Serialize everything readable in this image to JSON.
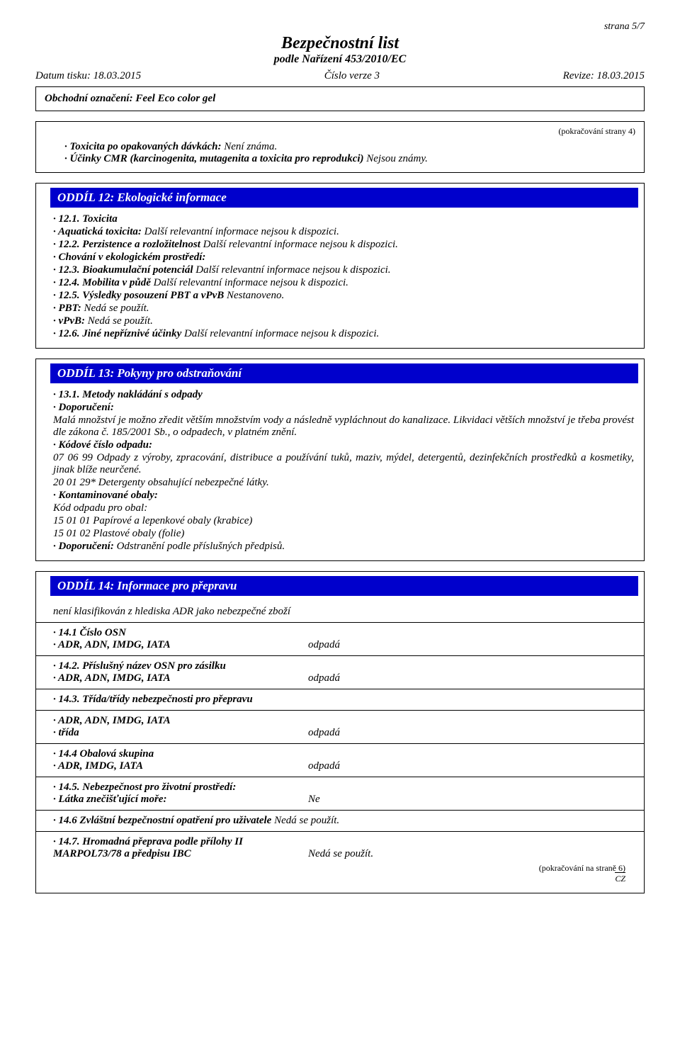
{
  "page": {
    "page_number": "strana 5/7",
    "title": "Bezpečnostní list",
    "subtitle": "podle Nařízení 453/2010/EC",
    "print_date_label": "Datum tisku: 18.03.2015",
    "version_label": "Číslo verze 3",
    "revision_label": "Revize: 18.03.2015",
    "product_label": "Obchodní označení: Feel Eco color gel",
    "cont_from": "(pokračování  strany 4)",
    "cont_next": "(pokračování na straně 6)",
    "cz": "CZ"
  },
  "intro": {
    "l1a": "· Toxicita po opakovaných dávkách:",
    "l1b": " Není známa.",
    "l2a": "· Účinky CMR (karcinogenita, mutagenita a toxicita pro reprodukci)",
    "l2b": " Nejsou známy."
  },
  "s12": {
    "header": "ODDÍL 12: Ekologické informace",
    "l1": "· 12.1. Toxicita",
    "l2a": "· Aquatická toxicita:",
    "l2b": " Další relevantní informace nejsou k dispozici.",
    "l3a": "· 12.2. Perzistence a rozložitelnost",
    "l3b": " Další relevantní informace nejsou k dispozici.",
    "l4": "· Chování v ekologickém prostředí:",
    "l5a": "· 12.3. Bioakumulační potenciál",
    "l5b": " Další relevantní informace nejsou k dispozici.",
    "l6a": "· 12.4. Mobilita v půdě",
    "l6b": " Další relevantní informace nejsou k dispozici.",
    "l7a": "· 12.5. Výsledky posouzení PBT a vPvB",
    "l7b": " Nestanoveno.",
    "l8a": "· PBT:",
    "l8b": " Nedá se použít.",
    "l9a": "· vPvB:",
    "l9b": " Nedá se použít.",
    "l10a": "· 12.6. Jiné nepříznivé účinky",
    "l10b": " Další relevantní informace nejsou k dispozici."
  },
  "s13": {
    "header": "ODDÍL 13: Pokyny pro odstraňování",
    "l1": "· 13.1. Metody nakládání s odpady",
    "l2": "· Doporučení:",
    "p1": "Malá množství je možno zředit větším množstvím vody a následně vypláchnout do kanalizace. Likvidaci větších množství je třeba provést dle zákona č. 185/2001 Sb., o odpadech, v platném znění.",
    "l3": "· Kódové číslo odpadu:",
    "p2": "07 06 99 Odpady z výroby, zpracování, distribuce a používání tuků, maziv, mýdel, detergentů, dezinfekčních prostředků a kosmetiky, jinak blíže neurčené.",
    "p3": "20 01 29* Detergenty obsahující nebezpečné látky.",
    "l4": "· Kontaminované obaly:",
    "p4": "Kód odpadu pro obal:",
    "p5": "15 01 01 Papírové a lepenkové obaly (krabice)",
    "p6": "15 01 02 Plastové obaly (folie)",
    "l5a": "· Doporučení:",
    "l5b": " Odstranění podle příslušných předpisů."
  },
  "s14": {
    "header": "ODDÍL 14: Informace pro přepravu",
    "intro": "není klasifikován z hlediska ADR jako nebezpečné zboží",
    "r1k1": "· 14.1 Číslo OSN",
    "r1k2": "· ADR, ADN, IMDG, IATA",
    "r1v": "odpadá",
    "r2k1": "· 14.2. Příslušný název OSN pro zásilku",
    "r2k2": "· ADR, ADN, IMDG, IATA",
    "r2v": "odpadá",
    "r3k1": "· 14.3. Třída/třídy nebezpečnosti pro přepravu",
    "r3k2": "· ADR, ADN, IMDG, IATA",
    "r3k3": "· třída",
    "r3v": "odpadá",
    "r4k1": "· 14.4 Obalová skupina",
    "r4k2": "· ADR, IMDG, IATA",
    "r4v": "odpadá",
    "r5k1": "· 14.5. Nebezpečnost pro životní prostředí:",
    "r5k2": "· Látka znečišťující moře:",
    "r5v": "Ne",
    "r6k": "· 14.6 Zvláštní bezpečnostní opatření pro uživatele",
    "r6v": " Nedá se použít.",
    "r7k1": "· 14.7. Hromadná přeprava podle přílohy II",
    "r7k2": "MARPOL73/78 a předpisu IBC",
    "r7v": "Nedá se použít."
  }
}
